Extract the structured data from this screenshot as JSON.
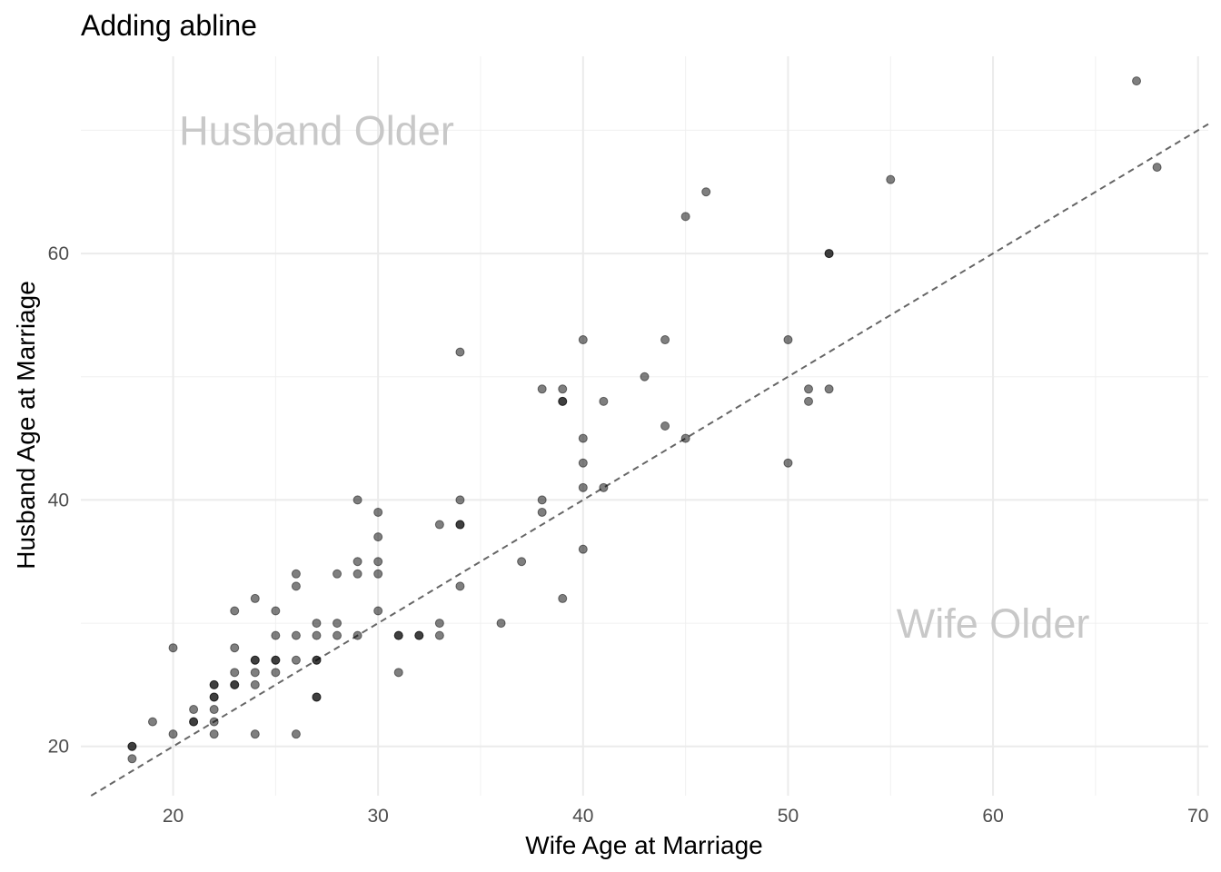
{
  "chart_data": {
    "type": "scatter",
    "title": "Adding abline",
    "xlabel": "Wife Age at Marriage",
    "ylabel": "Husband Age at Marriage",
    "xlim": [
      15.5,
      70.5
    ],
    "ylim": [
      16.0,
      76.0
    ],
    "x_ticks": [
      20,
      30,
      40,
      50,
      60,
      70
    ],
    "y_ticks": [
      20,
      40,
      60
    ],
    "grid": true,
    "legend": "none",
    "point_color": "#000000",
    "point_opacity": 0.5,
    "reference_line": {
      "slope": 1,
      "intercept": 0,
      "style": "dashed",
      "color": "#666666"
    },
    "annotations": [
      {
        "text": "Husband Older",
        "x": 27,
        "y": 70,
        "color": "#c8c8c8"
      },
      {
        "text": "Wife Older",
        "x": 60,
        "y": 30,
        "color": "#c8c8c8"
      }
    ],
    "points": [
      {
        "x": 18,
        "y": 20
      },
      {
        "x": 18,
        "y": 20
      },
      {
        "x": 18,
        "y": 19
      },
      {
        "x": 19,
        "y": 22
      },
      {
        "x": 20,
        "y": 28
      },
      {
        "x": 20,
        "y": 21
      },
      {
        "x": 21,
        "y": 23
      },
      {
        "x": 21,
        "y": 22
      },
      {
        "x": 21,
        "y": 22
      },
      {
        "x": 22,
        "y": 25
      },
      {
        "x": 22,
        "y": 25
      },
      {
        "x": 22,
        "y": 24
      },
      {
        "x": 22,
        "y": 24
      },
      {
        "x": 22,
        "y": 23
      },
      {
        "x": 22,
        "y": 22
      },
      {
        "x": 22,
        "y": 21
      },
      {
        "x": 23,
        "y": 31
      },
      {
        "x": 23,
        "y": 28
      },
      {
        "x": 23,
        "y": 26
      },
      {
        "x": 23,
        "y": 25
      },
      {
        "x": 23,
        "y": 25
      },
      {
        "x": 24,
        "y": 32
      },
      {
        "x": 24,
        "y": 27
      },
      {
        "x": 24,
        "y": 27
      },
      {
        "x": 24,
        "y": 26
      },
      {
        "x": 24,
        "y": 25
      },
      {
        "x": 24,
        "y": 21
      },
      {
        "x": 25,
        "y": 31
      },
      {
        "x": 25,
        "y": 29
      },
      {
        "x": 25,
        "y": 27
      },
      {
        "x": 25,
        "y": 27
      },
      {
        "x": 25,
        "y": 26
      },
      {
        "x": 26,
        "y": 34
      },
      {
        "x": 26,
        "y": 33
      },
      {
        "x": 26,
        "y": 29
      },
      {
        "x": 26,
        "y": 27
      },
      {
        "x": 26,
        "y": 21
      },
      {
        "x": 27,
        "y": 30
      },
      {
        "x": 27,
        "y": 29
      },
      {
        "x": 27,
        "y": 27
      },
      {
        "x": 27,
        "y": 27
      },
      {
        "x": 27,
        "y": 24
      },
      {
        "x": 27,
        "y": 24
      },
      {
        "x": 28,
        "y": 34
      },
      {
        "x": 28,
        "y": 30
      },
      {
        "x": 28,
        "y": 29
      },
      {
        "x": 29,
        "y": 40
      },
      {
        "x": 29,
        "y": 35
      },
      {
        "x": 29,
        "y": 34
      },
      {
        "x": 29,
        "y": 29
      },
      {
        "x": 30,
        "y": 39
      },
      {
        "x": 30,
        "y": 37
      },
      {
        "x": 30,
        "y": 35
      },
      {
        "x": 30,
        "y": 34
      },
      {
        "x": 30,
        "y": 31
      },
      {
        "x": 31,
        "y": 29
      },
      {
        "x": 31,
        "y": 29
      },
      {
        "x": 31,
        "y": 26
      },
      {
        "x": 32,
        "y": 29
      },
      {
        "x": 32,
        "y": 29
      },
      {
        "x": 33,
        "y": 38
      },
      {
        "x": 33,
        "y": 30
      },
      {
        "x": 33,
        "y": 29
      },
      {
        "x": 34,
        "y": 52
      },
      {
        "x": 34,
        "y": 40
      },
      {
        "x": 34,
        "y": 38
      },
      {
        "x": 34,
        "y": 38
      },
      {
        "x": 34,
        "y": 33
      },
      {
        "x": 36,
        "y": 30
      },
      {
        "x": 37,
        "y": 35
      },
      {
        "x": 38,
        "y": 49
      },
      {
        "x": 38,
        "y": 40
      },
      {
        "x": 38,
        "y": 39
      },
      {
        "x": 39,
        "y": 49
      },
      {
        "x": 39,
        "y": 48
      },
      {
        "x": 39,
        "y": 48
      },
      {
        "x": 39,
        "y": 32
      },
      {
        "x": 40,
        "y": 53
      },
      {
        "x": 40,
        "y": 45
      },
      {
        "x": 40,
        "y": 43
      },
      {
        "x": 40,
        "y": 41
      },
      {
        "x": 40,
        "y": 36
      },
      {
        "x": 41,
        "y": 48
      },
      {
        "x": 41,
        "y": 41
      },
      {
        "x": 43,
        "y": 50
      },
      {
        "x": 44,
        "y": 53
      },
      {
        "x": 44,
        "y": 46
      },
      {
        "x": 45,
        "y": 63
      },
      {
        "x": 45,
        "y": 45
      },
      {
        "x": 46,
        "y": 65
      },
      {
        "x": 50,
        "y": 53
      },
      {
        "x": 50,
        "y": 43
      },
      {
        "x": 51,
        "y": 49
      },
      {
        "x": 51,
        "y": 48
      },
      {
        "x": 52,
        "y": 60
      },
      {
        "x": 52,
        "y": 60
      },
      {
        "x": 52,
        "y": 49
      },
      {
        "x": 55,
        "y": 66
      },
      {
        "x": 67,
        "y": 74
      },
      {
        "x": 68,
        "y": 67
      }
    ]
  }
}
